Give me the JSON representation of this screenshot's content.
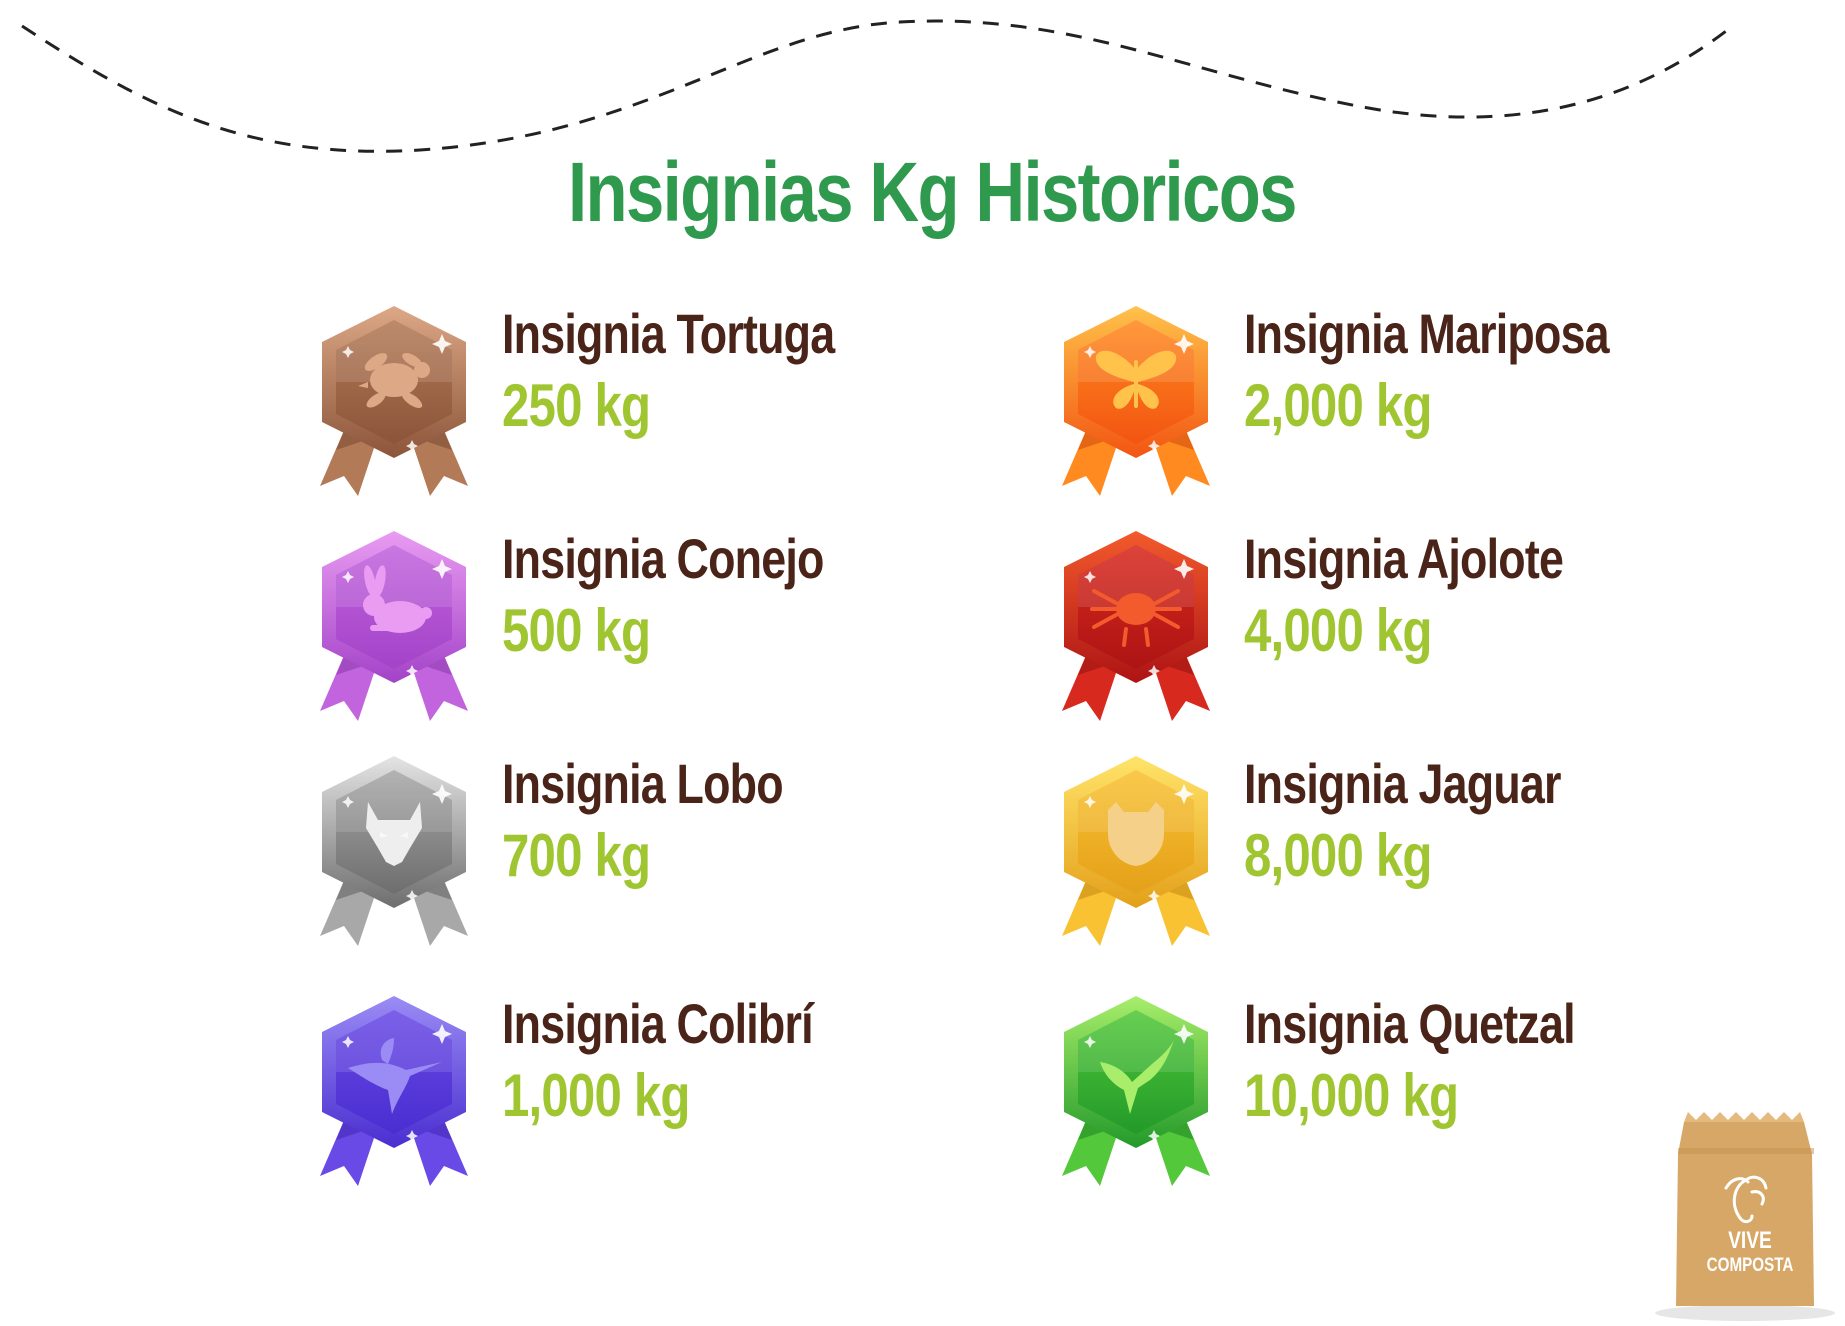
{
  "title": "Insignias Kg Historicos",
  "badges": [
    {
      "name": "Insignia Tortuga",
      "kg": "250 kg",
      "icon": "turtle-icon",
      "colors": [
        "#dca886",
        "#b37a57",
        "#8c553a"
      ]
    },
    {
      "name": "Insignia Conejo",
      "kg": "500 kg",
      "icon": "rabbit-icon",
      "colors": [
        "#e99cf2",
        "#c264dd",
        "#a343c8"
      ]
    },
    {
      "name": "Insignia Lobo",
      "kg": "700 kg",
      "icon": "wolf-icon",
      "colors": [
        "#e4e4e4",
        "#a8a8a8",
        "#6e6e6e"
      ]
    },
    {
      "name": "Insignia Colibrí",
      "kg": "1,000 kg",
      "icon": "hummingbird-icon",
      "colors": [
        "#9a8cf4",
        "#6a4ae6",
        "#4a2ed0"
      ]
    },
    {
      "name": "Insignia Mariposa",
      "kg": "2,000 kg",
      "icon": "butterfly-icon",
      "colors": [
        "#ffc24a",
        "#ff8a20",
        "#f25512"
      ]
    },
    {
      "name": "Insignia Ajolote",
      "kg": "4,000 kg",
      "icon": "axolotl-icon",
      "colors": [
        "#f35a2c",
        "#d8291e",
        "#ad1414"
      ]
    },
    {
      "name": "Insignia Jaguar",
      "kg": "8,000 kg",
      "icon": "jaguar-icon",
      "colors": [
        "#ffe46a",
        "#f8c232",
        "#e4a01a"
      ]
    },
    {
      "name": "Insignia Quetzal",
      "kg": "10,000 kg",
      "icon": "quetzal-icon",
      "colors": [
        "#a8ee6a",
        "#53c83a",
        "#239a2a"
      ]
    }
  ],
  "logo": {
    "line1": "VIVE",
    "line2": "COMPOSTA"
  },
  "colors": {
    "title": "#2f9a4e",
    "badge_name": "#4a2418",
    "badge_kg": "#9fc631",
    "bag": "#d6a767"
  }
}
